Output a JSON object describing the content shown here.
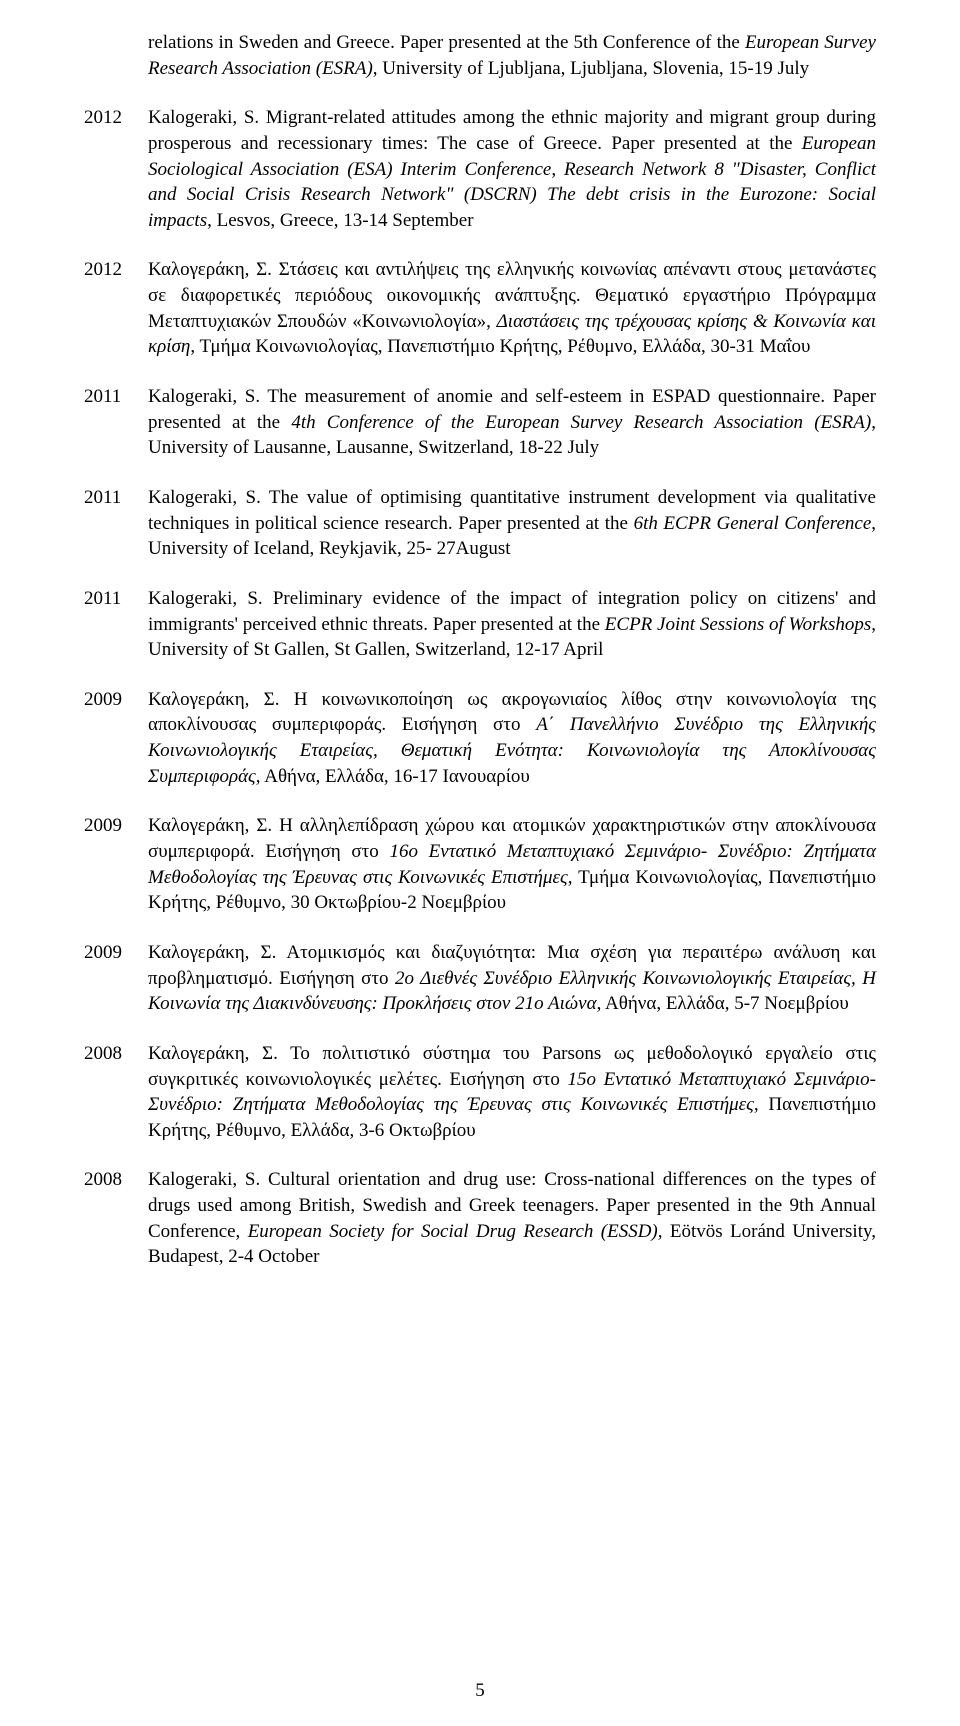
{
  "lead_fragment": {
    "part1": "relations in Sweden and Greece. Paper presented at the 5th Conference of the ",
    "italic": "European Survey Research Association (ESRA)",
    "part2": ", University of Ljubljana, Ljubljana, Slovenia, 15-19 July"
  },
  "entries": [
    {
      "year": "2012",
      "segments": [
        {
          "text": "Kalogeraki, S. Migrant-related attitudes among the ethnic majority and migrant group during prosperous and recessionary times: The case of Greece. Paper presented at the "
        },
        {
          "text": "European Sociological Association (ESA) Interim Conference, Research Network 8 \"Disaster, Conflict and Social Crisis Research Network\" (DSCRN) The debt crisis in the Eurozone: Social impacts",
          "italic": true
        },
        {
          "text": ", Lesvos, Greece, 13-14 September"
        }
      ]
    },
    {
      "year": "2012",
      "segments": [
        {
          "text": "Καλογεράκη, Σ. Στάσεις και αντιλήψεις της ελληνικής κοινωνίας απέναντι στους μετανάστες σε διαφορετικές περιόδους οικονομικής ανάπτυξης. Θεματικό εργαστήριο Πρόγραμμα Μεταπτυχιακών Σπουδών «Κοινωνιολογία», "
        },
        {
          "text": "Διαστάσεις της τρέχουσας κρίσης & Κοινωνία και κρίση",
          "italic": true
        },
        {
          "text": ", Τμήμα Κοινωνιολογίας, Πανεπιστήμιο Κρήτης, Ρέθυμνο, Ελλάδα, 30-31 Μαΐου"
        }
      ]
    },
    {
      "year": "2011",
      "segments": [
        {
          "text": "Kalogeraki, S. The measurement of anomie and self-esteem in ESPAD questionnaire. Paper presented at the "
        },
        {
          "text": "4th Conference of the European Survey Research Association (ESRA)",
          "italic": true
        },
        {
          "text": ", University of Lausanne, Lausanne, Switzerland, 18-22 July"
        }
      ]
    },
    {
      "year": "2011",
      "segments": [
        {
          "text": "Kalogeraki, S. The value of optimising quantitative instrument development via qualitative techniques in political science research. Paper presented at the "
        },
        {
          "text": "6th ECPR General Conference",
          "italic": true
        },
        {
          "text": ", University of Iceland, Reykjavik, 25- 27August"
        }
      ]
    },
    {
      "year": "2011",
      "segments": [
        {
          "text": "Kalogeraki, S. Preliminary evidence of the impact of integration policy on citizens' and immigrants' perceived ethnic threats. Paper presented at the "
        },
        {
          "text": "ECPR Joint Sessions of Workshops",
          "italic": true
        },
        {
          "text": ", University of St Gallen, St Gallen, Switzerland, 12-17 April"
        }
      ]
    },
    {
      "year": "2009",
      "segments": [
        {
          "text": "Καλογεράκη, Σ. Η κοινωνικοποίηση ως ακρογωνιαίος λίθος στην κοινωνιολογία της αποκλίνουσας συμπεριφοράς. Εισήγηση στο "
        },
        {
          "text": "Α΄ Πανελλήνιο Συνέδριο της Ελληνικής Κοινωνιολογικής Εταιρείας, Θεματική Ενότητα: Κοινωνιολογία της Αποκλίνουσας Συμπεριφοράς",
          "italic": true
        },
        {
          "text": ", Αθήνα, Ελλάδα, 16-17 Ιανουαρίου"
        }
      ]
    },
    {
      "year": "2009",
      "segments": [
        {
          "text": "Καλογεράκη, Σ. Η αλληλεπίδραση χώρου και ατομικών χαρακτηριστικών στην αποκλίνουσα συμπεριφορά. Εισήγηση στο "
        },
        {
          "text": "16ο  Εντατικό Μεταπτυχιακό Σεμινάριο- Συνέδριο: Ζητήματα Μεθοδολογίας της Έρευνας στις Κοινωνικές Επιστήμες",
          "italic": true
        },
        {
          "text": ", Τμήμα Κοινωνιολογίας, Πανεπιστήμιο Κρήτης, Ρέθυμνο, 30 Οκτωβρίου-2 Νοεμβρίου"
        }
      ]
    },
    {
      "year": "2009",
      "segments": [
        {
          "text": "Καλογεράκη, Σ. Ατομικισμός και διαζυγιότητα: Μια σχέση για περαιτέρω ανάλυση και προβληματισμό. Εισήγηση στο "
        },
        {
          "text": "2ο Διεθνές Συνέδριο Ελληνικής Κοινωνιολογικής Εταιρείας, Η Κοινωνία της Διακινδύνευσης: Προκλήσεις στον 21ο Αιώνα",
          "italic": true
        },
        {
          "text": ", Αθήνα, Ελλάδα, 5-7 Νοεμβρίου"
        }
      ]
    },
    {
      "year": "2008",
      "segments": [
        {
          "text": "Καλογεράκη, Σ. Το πολιτιστικό σύστημα του Parsons ως μεθοδολογικό εργαλείο στις συγκριτικές κοινωνιολογικές μελέτες. Εισήγηση στο "
        },
        {
          "text": "15ο  Εντατικό Μεταπτυχιακό Σεμινάριο-Συνέδριο: Ζητήματα Μεθοδολογίας της Έρευνας στις Κοινωνικές Επιστήμες",
          "italic": true
        },
        {
          "text": ", Πανεπιστήμιο Κρήτης, Ρέθυμνο, Ελλάδα, 3-6 Οκτωβρίου"
        }
      ]
    },
    {
      "year": "2008",
      "segments": [
        {
          "text": "Kalogeraki, S. Cultural orientation and drug use: Cross-national differences on the types of drugs used among British, Swedish and Greek teenagers. Paper presented in the 9th Annual Conference, "
        },
        {
          "text": "European Society for Social Drug Research (ESSD)",
          "italic": true
        },
        {
          "text": ", Eötvös Loránd University, Budapest, 2-4 October"
        }
      ]
    }
  ],
  "page_number": "5"
}
